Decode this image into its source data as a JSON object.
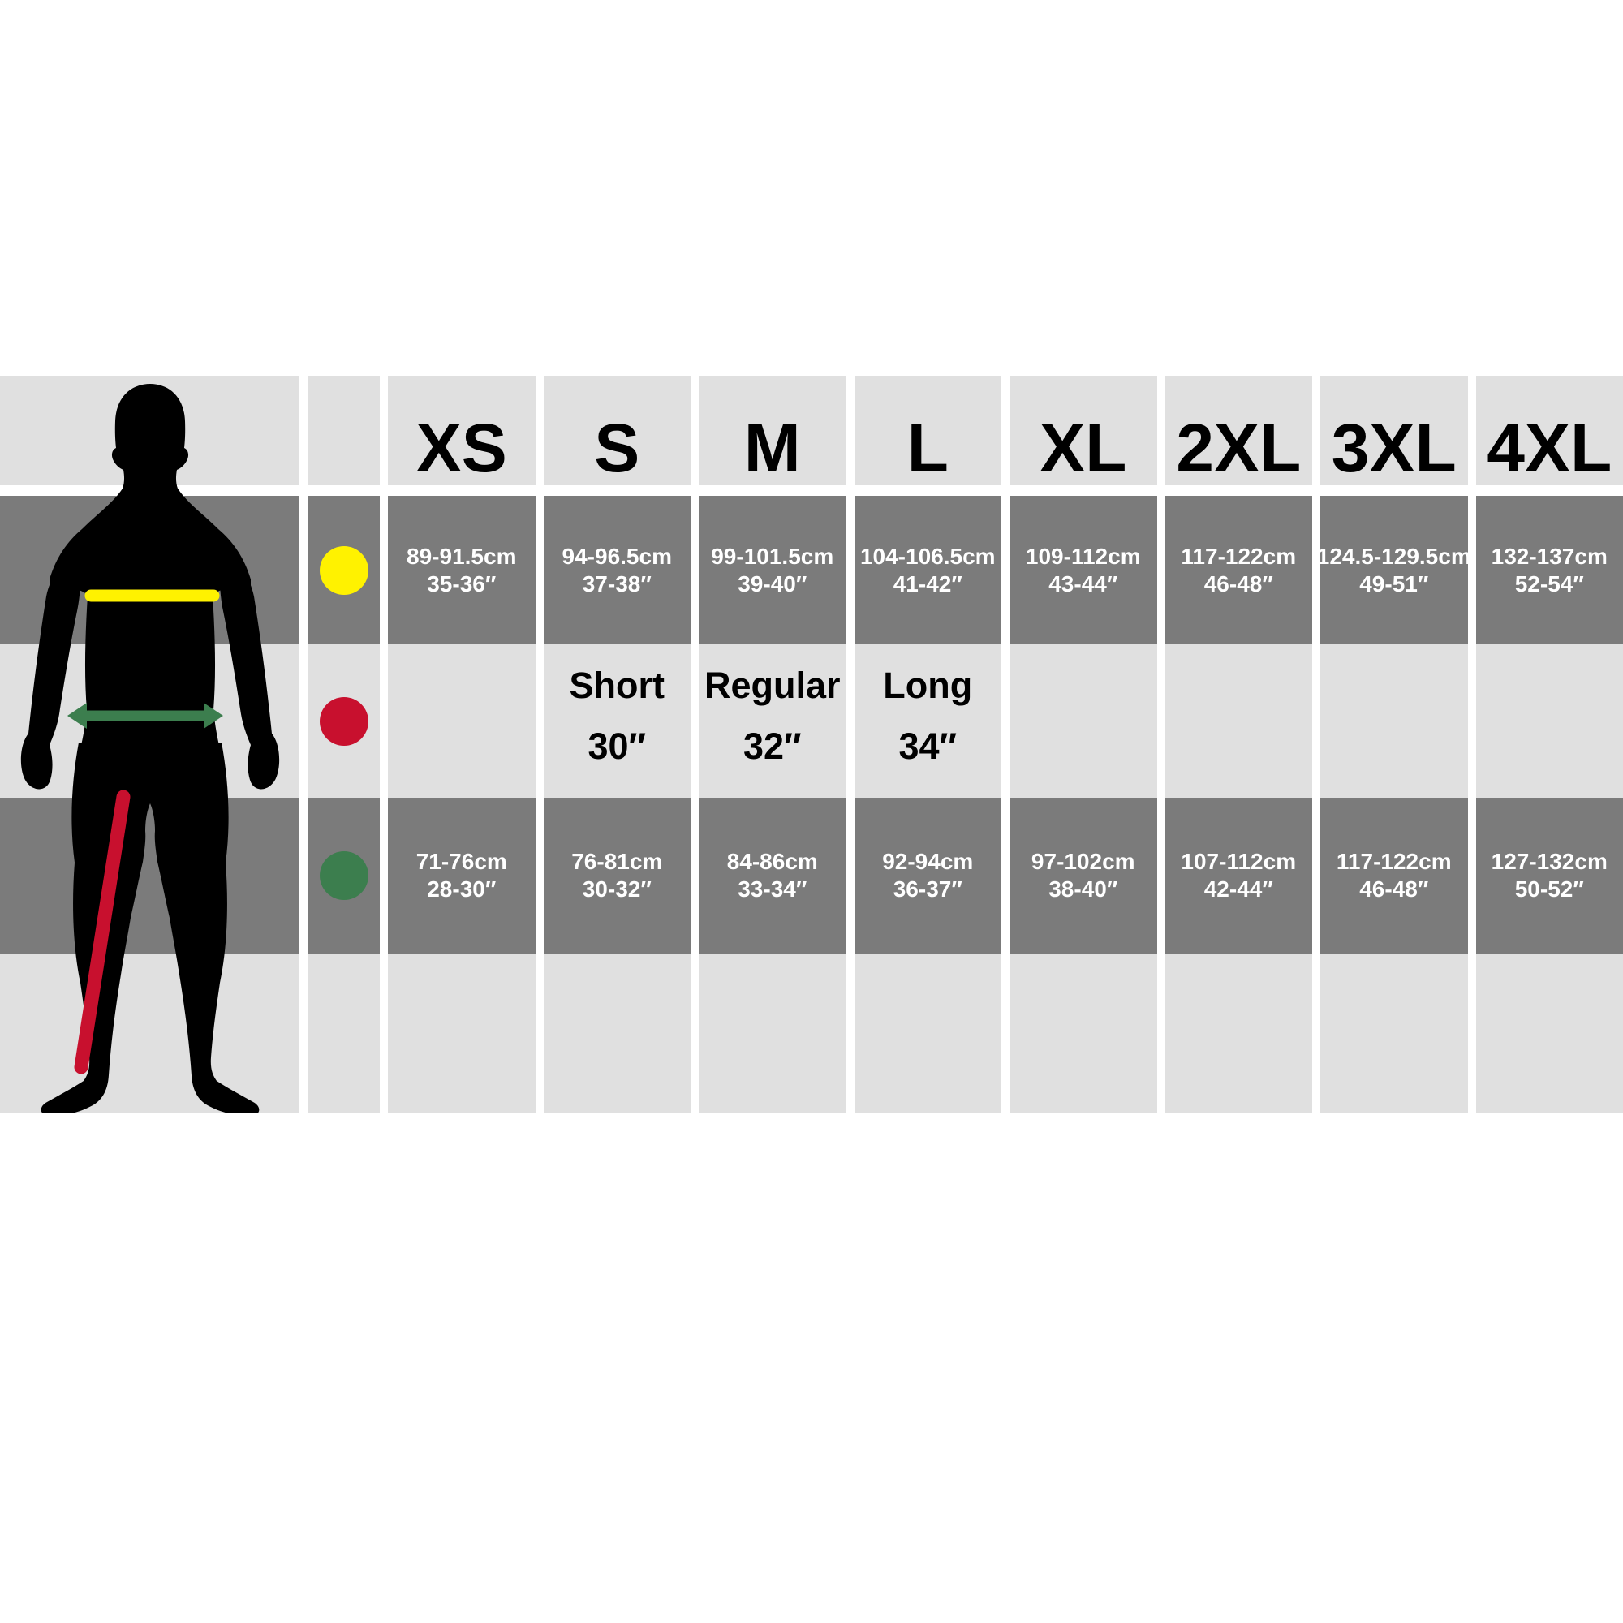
{
  "chart": {
    "sizes": [
      "XS",
      "S",
      "M",
      "L",
      "XL",
      "2XL",
      "3XL",
      "4XL"
    ],
    "measurements": [
      {
        "id": "chest",
        "dot_icon": "yellow-dot",
        "dot_color": "#fff200",
        "shade": "dark",
        "cells": [
          [
            "89-91.5cm",
            "35-36″"
          ],
          [
            "94-96.5cm",
            "37-38″"
          ],
          [
            "99-101.5cm",
            "39-40″"
          ],
          [
            "104-106.5cm",
            "41-42″"
          ],
          [
            "109-112cm",
            "43-44″"
          ],
          [
            "117-122cm",
            "46-48″"
          ],
          [
            "124.5-129.5cm",
            "49-51″"
          ],
          [
            "132-137cm",
            "52-54″"
          ]
        ]
      },
      {
        "id": "leg-length",
        "dot_icon": "red-dot",
        "dot_color": "#c8102e",
        "shade": "light",
        "cells": [
          null,
          [
            "Short",
            "30″"
          ],
          [
            "Regular",
            "32″"
          ],
          [
            "Long",
            "34″"
          ],
          null,
          null,
          null,
          null
        ]
      },
      {
        "id": "waist",
        "dot_icon": "green-dot",
        "dot_color": "#3c7e4e",
        "shade": "dark",
        "cells": [
          [
            "71-76cm",
            "28-30″"
          ],
          [
            "76-81cm",
            "30-32″"
          ],
          [
            "84-86cm",
            "33-34″"
          ],
          [
            "92-94cm",
            "36-37″"
          ],
          [
            "97-102cm",
            "38-40″"
          ],
          [
            "107-112cm",
            "42-44″"
          ],
          [
            "117-122cm",
            "46-48″"
          ],
          [
            "127-132cm",
            "50-52″"
          ]
        ]
      }
    ]
  },
  "colors": {
    "background": "#ffffff",
    "row_light": "#e0e0e0",
    "row_dark": "#7b7b7b",
    "text_dark": "#000000",
    "text_light": "#ffffff",
    "figure": "#000000",
    "chest_line": "#fff200",
    "inseam_line": "#c8102e",
    "waist_line": "#3c7e4e"
  }
}
